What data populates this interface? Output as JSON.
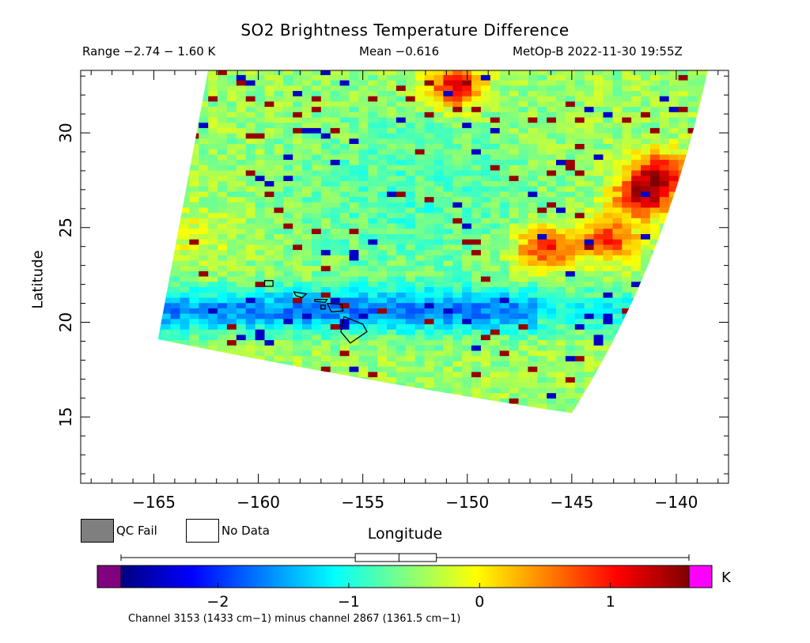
{
  "chart_data": {
    "type": "heatmap",
    "title": "SO2 Brightness Temperature Difference",
    "header": {
      "range": "Range −2.74 − 1.60 K",
      "mean": "Mean −0.616",
      "satellite_time": "MetOp-B 2022-11-30 19:55Z"
    },
    "xlabel": "Longitude",
    "ylabel": "Latitude",
    "xlim": [
      -168.5,
      -137.5
    ],
    "ylim": [
      11.5,
      33.3
    ],
    "x_ticks": [
      -165,
      -160,
      -155,
      -150,
      -145,
      -140
    ],
    "x_tick_labels": [
      "−165",
      "−160",
      "−155",
      "−150",
      "−145",
      "−140"
    ],
    "y_ticks": [
      15,
      20,
      25,
      30
    ],
    "y_tick_labels": [
      "15",
      "20",
      "25",
      "30"
    ],
    "swath_corners": {
      "top_left": [
        -162.4,
        33.3
      ],
      "top_right": [
        -138.5,
        33.3
      ],
      "bottom_right": [
        -145.0,
        15.2
      ],
      "bottom_left": [
        -164.8,
        19.1
      ]
    },
    "hot_spots": [
      {
        "lon": -150.8,
        "lat": 32.3,
        "value": 1.1
      },
      {
        "lon": -141.8,
        "lat": 26.5,
        "value": 1.2
      },
      {
        "lon": -141.0,
        "lat": 27.8,
        "value": 1.0
      },
      {
        "lon": -146.5,
        "lat": 23.8,
        "value": 0.9
      },
      {
        "lon": -143.5,
        "lat": 24.2,
        "value": 0.8
      }
    ],
    "cold_band_lat": 20.5,
    "mean": -0.616,
    "colorbar": {
      "vmin": -2.74,
      "vmax": 1.6,
      "ticks": [
        -2,
        -1,
        0,
        1
      ],
      "tick_labels": [
        "−2",
        "−1",
        "0",
        "1"
      ],
      "unit": "K",
      "colors": [
        "#000080",
        "#0000ff",
        "#0080ff",
        "#00ffff",
        "#80ff80",
        "#ffff00",
        "#ff8000",
        "#ff0000",
        "#800000"
      ],
      "under_color": "#800080",
      "over_color": "#ff00ff",
      "boxplot": {
        "whisker_low": -2.74,
        "q1": -0.95,
        "median": -0.616,
        "q3": -0.33,
        "whisker_high": 1.6
      }
    },
    "legend": [
      {
        "label": "QC Fail",
        "color": "#7f7f7f"
      },
      {
        "label": "No Data",
        "color": "#ffffff"
      }
    ],
    "footnote": "Channel 3153 (1433 cm−1) minus channel 2867 (1361.5 cm−1)"
  }
}
